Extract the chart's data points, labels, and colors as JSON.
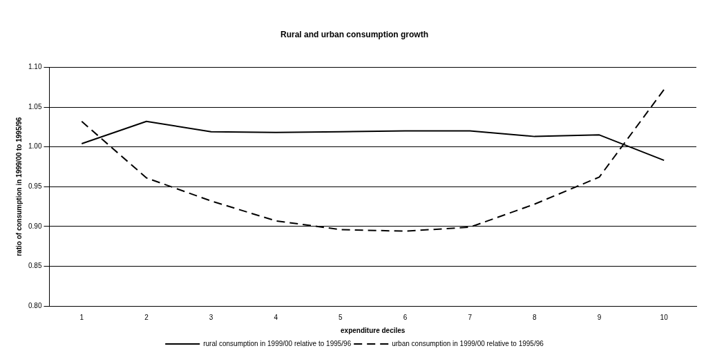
{
  "chart_data": {
    "type": "line",
    "title": "Rural and urban consumption growth",
    "xlabel": "expenditure deciles",
    "ylabel": "ratio of consumption in 1999/00 to 1995/96",
    "categories": [
      "1",
      "2",
      "3",
      "4",
      "5",
      "6",
      "7",
      "8",
      "9",
      "10"
    ],
    "series": [
      {
        "name": "rural consumption in 1999/00 relative to 1995/96",
        "color": "#000000",
        "line_style": "solid",
        "values": [
          1.004,
          1.032,
          1.019,
          1.018,
          1.019,
          1.02,
          1.02,
          1.013,
          1.015,
          0.983
        ]
      },
      {
        "name": "urban consumption in 1999/00 relative to 1995/96",
        "color": "#000000",
        "line_style": "dashed",
        "values": [
          1.032,
          0.961,
          0.932,
          0.907,
          0.896,
          0.894,
          0.899,
          0.928,
          0.962,
          1.072
        ]
      }
    ],
    "ylim": [
      0.8,
      1.1
    ],
    "yticks": [
      {
        "value": 0.8,
        "label": "0.80"
      },
      {
        "value": 0.85,
        "label": "0.85"
      },
      {
        "value": 0.9,
        "label": "0.90"
      },
      {
        "value": 0.95,
        "label": "0.95"
      },
      {
        "value": 1.0,
        "label": "1.00"
      },
      {
        "value": 1.05,
        "label": "1.05"
      },
      {
        "value": 1.1,
        "label": "1.10"
      }
    ],
    "grid": "y",
    "legend": "bottom",
    "marker": "none"
  }
}
